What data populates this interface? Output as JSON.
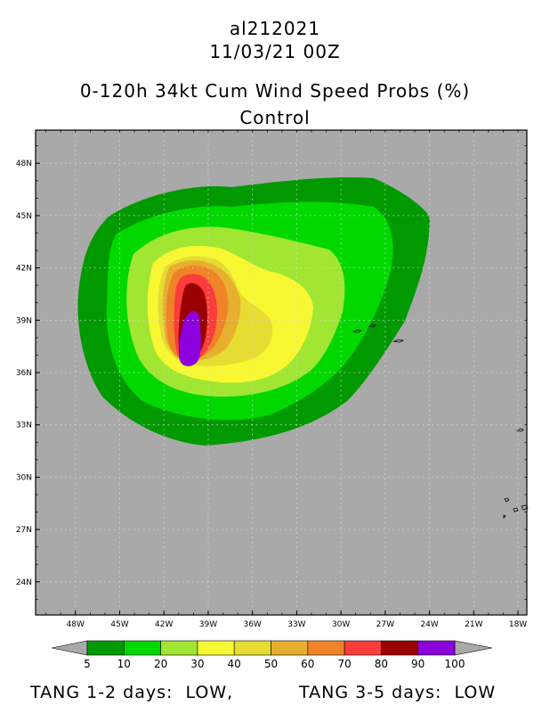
{
  "header": {
    "storm_id": "al212021",
    "datetime": "11/03/21 00Z",
    "product": "0-120h 34kt Cum Wind Speed Probs (%)",
    "run": "Control"
  },
  "map": {
    "background_color": "#a9a9a9",
    "lon_ticks": [
      "48W",
      "45W",
      "42W",
      "39W",
      "36W",
      "33W",
      "30W",
      "27W",
      "24W",
      "21W",
      "18W"
    ],
    "lat_ticks": [
      "48N",
      "45N",
      "42N",
      "39N",
      "36N",
      "33N",
      "30N",
      "27N",
      "24N"
    ],
    "lon_values": [
      -48,
      -45,
      -42,
      -39,
      -36,
      -33,
      -30,
      -27,
      -24,
      -21,
      -18
    ],
    "lat_values": [
      48,
      45,
      42,
      39,
      36,
      33,
      30,
      27,
      24
    ],
    "lon_range": [
      -50.7,
      -17.4
    ],
    "lat_range": [
      22.1,
      49.9
    ],
    "grid_lines": true
  },
  "colorbar": {
    "levels": [
      "5",
      "10",
      "20",
      "30",
      "40",
      "50",
      "60",
      "70",
      "80",
      "90",
      "100"
    ],
    "colors": [
      "#009a00",
      "#00d800",
      "#a0e632",
      "#f8f832",
      "#e6dc32",
      "#e6af2d",
      "#f08228",
      "#fa3c3c",
      "#9b0000",
      "#8c00dc"
    ]
  },
  "footer": {
    "left": "TANG 1-2 days:  LOW,",
    "right": "TANG 3-5 days:  LOW"
  }
}
